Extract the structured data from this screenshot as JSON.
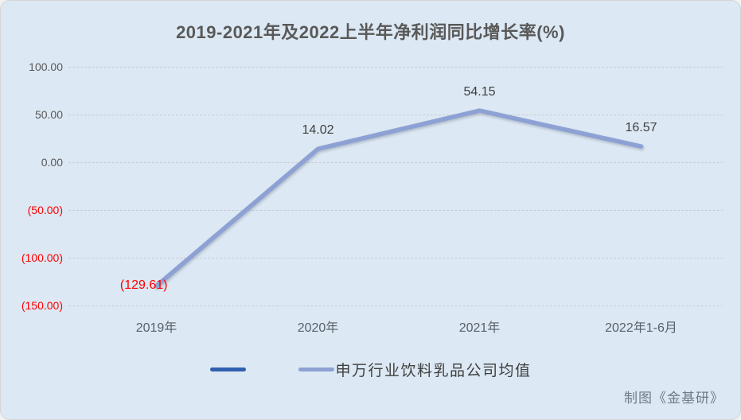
{
  "chart_data": {
    "type": "line",
    "title": "2019-2021年及2022上半年净利润同比增长率(%)",
    "categories": [
      "2019年",
      "2020年",
      "2021年",
      "2022年1-6月"
    ],
    "series": [
      {
        "name": "",
        "color": "#3060b0",
        "values": []
      },
      {
        "name": "申万行业饮料乳品公司均值",
        "color": "#8da1d4",
        "values": [
          -129.61,
          14.02,
          54.15,
          16.57
        ],
        "data_labels": [
          "(129.61)",
          "14.02",
          "54.15",
          "16.57"
        ],
        "label_positions": [
          "left",
          "above",
          "above",
          "above"
        ]
      }
    ],
    "ylim": [
      -150,
      100
    ],
    "ytick_step": 50,
    "ytick_labels": [
      "100.00",
      "50.00",
      "0.00",
      "(50.00)",
      "(100.00)",
      "(150.00)"
    ],
    "grid": true,
    "legend_position": "bottom",
    "colors": {
      "background": "#dce8f3",
      "title_text": "#595959",
      "axis_text": "#595959",
      "negative_text": "#ff0000",
      "gridline": "#c9cdd3",
      "data_label_text": "#3f3f3f"
    }
  },
  "credit": "制图《金基研》"
}
